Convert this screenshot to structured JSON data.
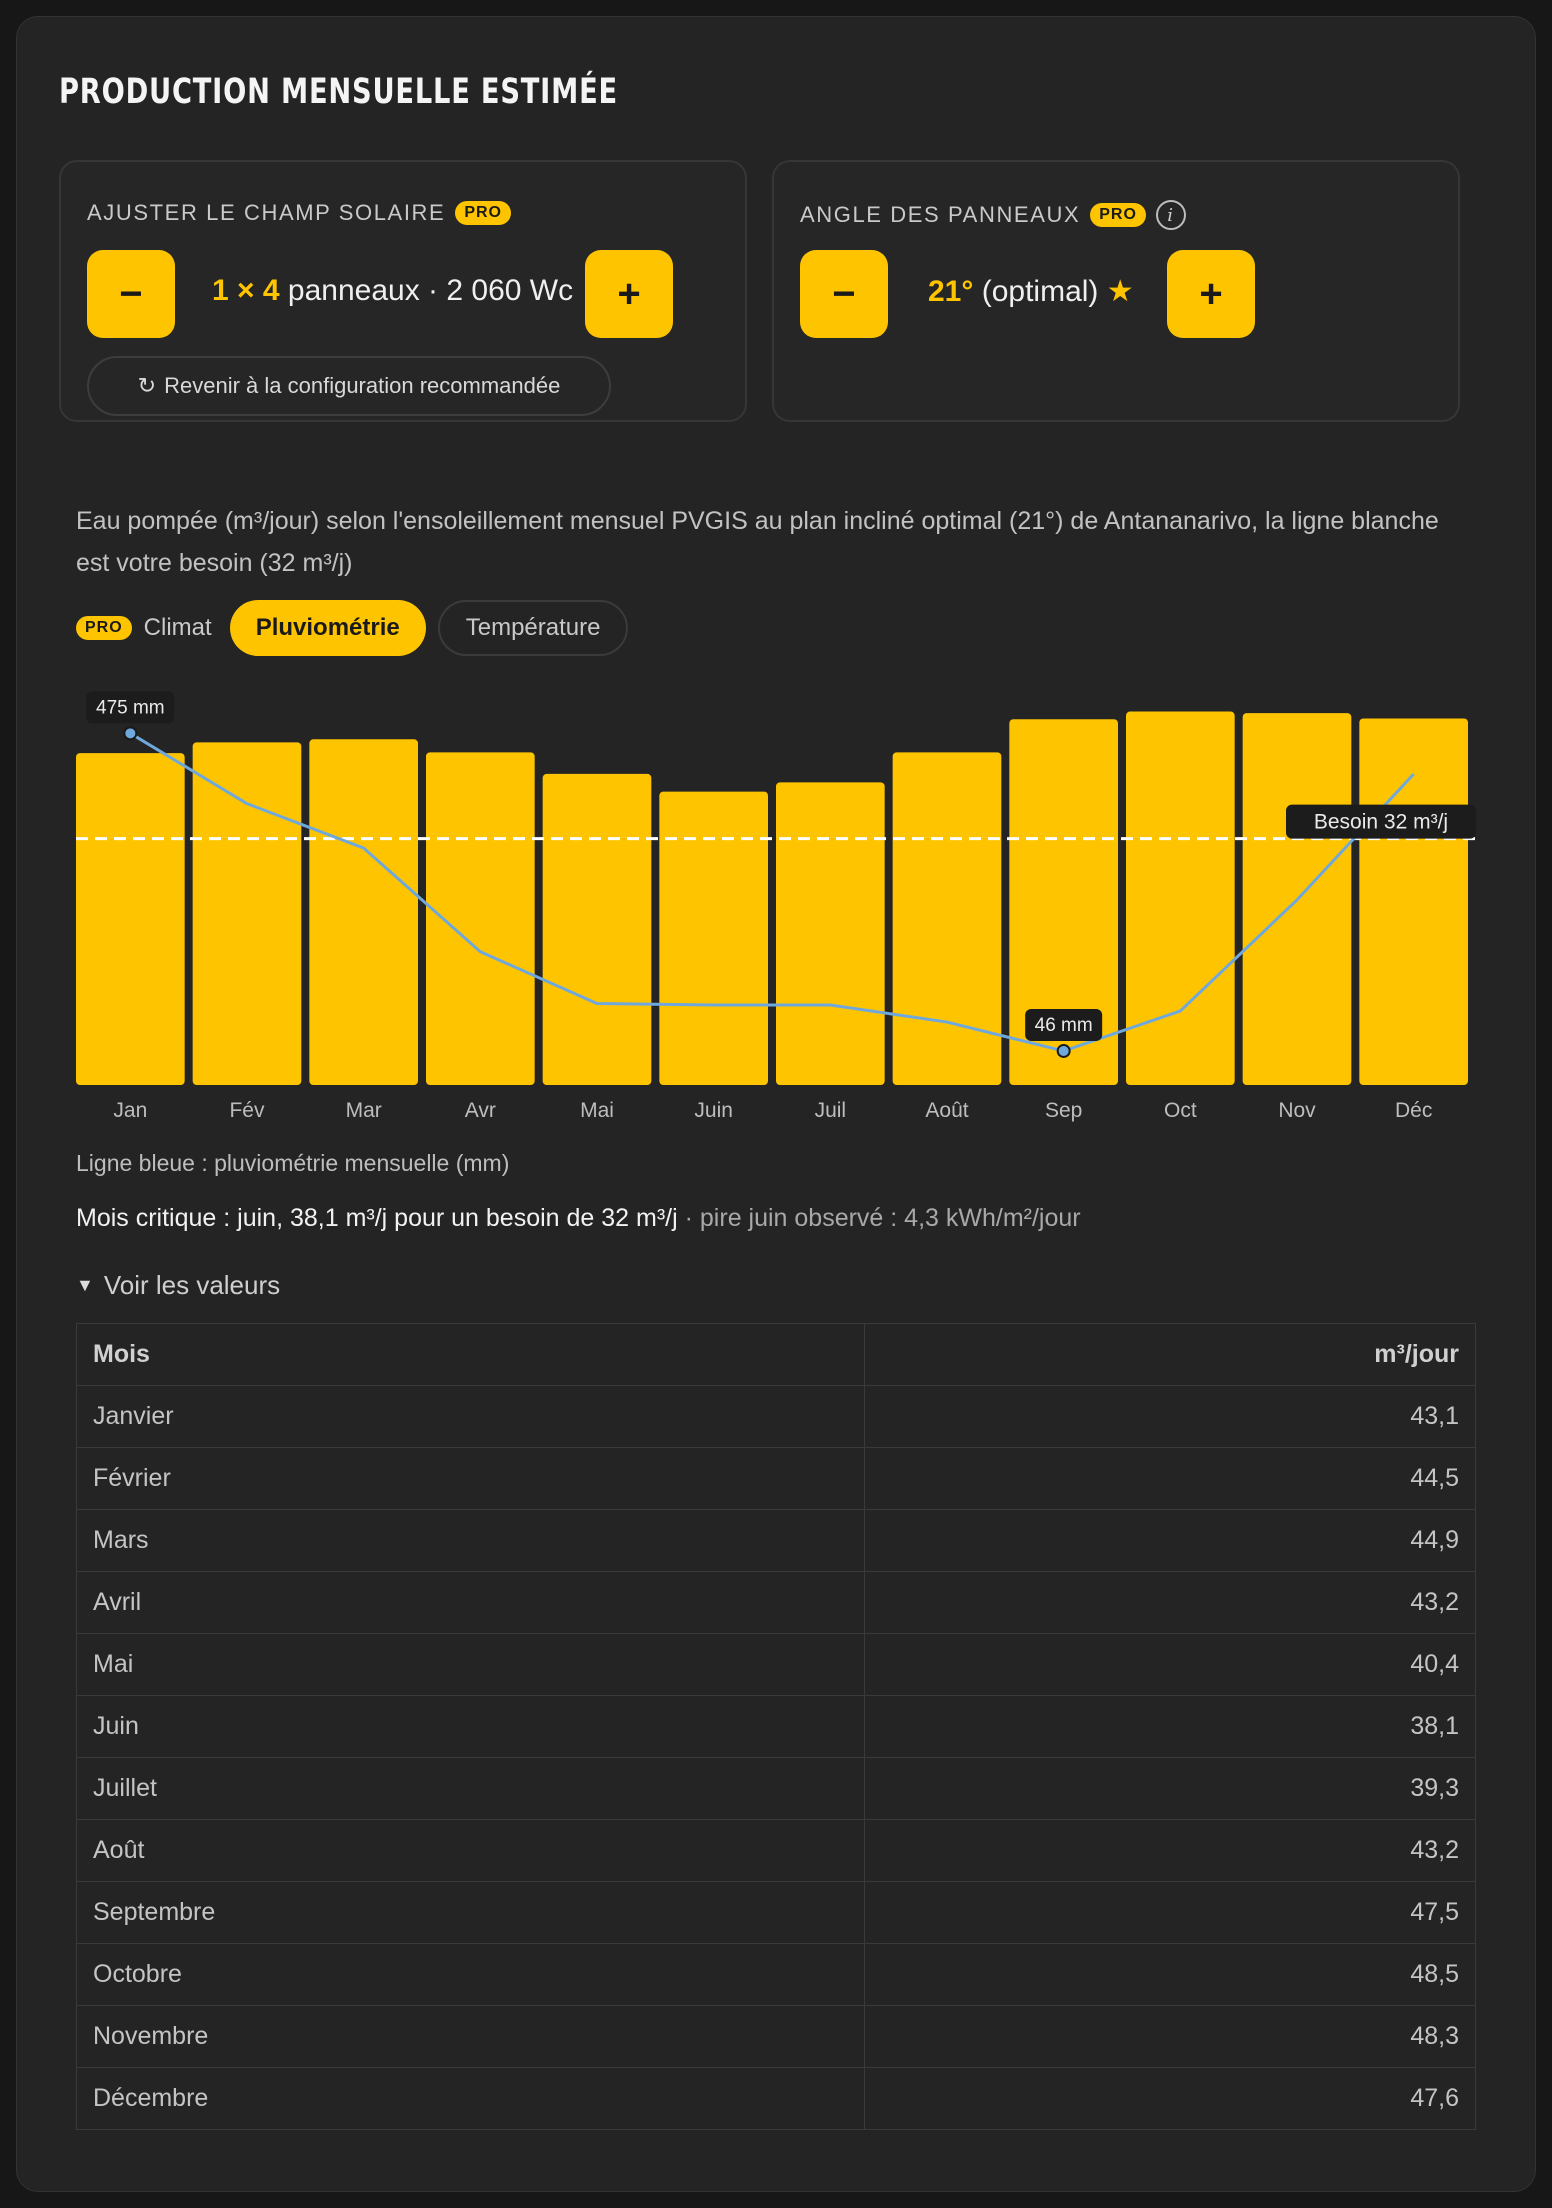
{
  "title": "PRODUCTION MENSUELLE ESTIMÉE",
  "solar": {
    "label": "AJUSTER LE CHAMP SOLAIRE",
    "badge": "PRO",
    "minus": "−",
    "plus": "+",
    "count": "1 × 4",
    "panels_text": "panneaux · 2 060 Wc",
    "reset_icon": "↻",
    "reset_label": "Revenir à la configuration recommandée"
  },
  "angle": {
    "label": "ANGLE DES PANNEAUX",
    "badge": "PRO",
    "info": "i",
    "minus": "−",
    "plus": "+",
    "value": "21°",
    "note": "(optimal)",
    "star": "★"
  },
  "description": "Eau pompée (m³/jour) selon l'ensoleillement mensuel PVGIS au plan incliné optimal (21°) de Antananarivo, la ligne blanche est votre besoin (32 m³/j)",
  "climate": {
    "badge": "PRO",
    "label": "Climat",
    "tabs": [
      "Pluviométrie",
      "Température"
    ],
    "active": "Pluviométrie"
  },
  "chart_data": {
    "type": "bar",
    "categories": [
      "Jan",
      "Fév",
      "Mar",
      "Avr",
      "Mai",
      "Juin",
      "Juil",
      "Août",
      "Sep",
      "Oct",
      "Nov",
      "Déc"
    ],
    "series": [
      {
        "name": "m³/jour",
        "values": [
          43.1,
          44.5,
          44.9,
          43.2,
          40.4,
          38.1,
          39.3,
          43.2,
          47.5,
          48.5,
          48.3,
          47.6
        ]
      }
    ],
    "line_series": {
      "name": "Ligne bleue : pluviométrie mensuelle (mm)",
      "values": [
        475,
        380,
        320,
        180,
        110,
        108,
        108,
        85,
        46,
        100,
        250,
        420
      ]
    },
    "besoin": 32,
    "besoin_label": "Besoin 32 m³/j",
    "annotations": [
      "475 mm",
      "46 mm"
    ],
    "ylim": [
      0,
      50
    ],
    "rain_ylim": [
      0,
      520
    ],
    "colors": {
      "bar": "#ffc400",
      "line": "#6fa8dc",
      "besoin": "#ffffff"
    }
  },
  "legend_note": "Ligne bleue : pluviométrie mensuelle (mm)",
  "critical": {
    "main": "Mois critique : juin, 38,1 m³/j pour un besoin de 32 m³/j",
    "secondary": " · pire juin observé : 4,3 kWh/m²/jour"
  },
  "toggle": {
    "caret": "▼",
    "label": "Voir les valeurs"
  },
  "table": {
    "headers": [
      "Mois",
      "m³/jour"
    ],
    "rows": [
      [
        "Janvier",
        "43,1"
      ],
      [
        "Février",
        "44,5"
      ],
      [
        "Mars",
        "44,9"
      ],
      [
        "Avril",
        "43,2"
      ],
      [
        "Mai",
        "40,4"
      ],
      [
        "Juin",
        "38,1"
      ],
      [
        "Juillet",
        "39,3"
      ],
      [
        "Août",
        "43,2"
      ],
      [
        "Septembre",
        "47,5"
      ],
      [
        "Octobre",
        "48,5"
      ],
      [
        "Novembre",
        "48,3"
      ],
      [
        "Décembre",
        "47,6"
      ]
    ]
  }
}
